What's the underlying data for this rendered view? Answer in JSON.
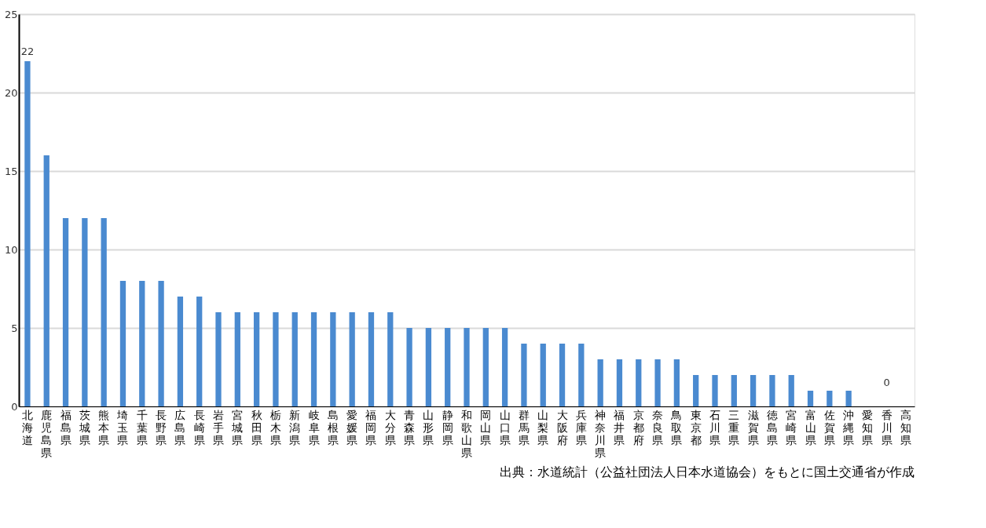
{
  "chart_data": {
    "type": "bar",
    "categories": [
      "北海道",
      "鹿児島県",
      "福島県",
      "茨城県",
      "熊本県",
      "埼玉県",
      "千葉県",
      "長野県",
      "広島県",
      "長崎県",
      "岩手県",
      "宮城県",
      "秋田県",
      "栃木県",
      "新潟県",
      "岐阜県",
      "島根県",
      "愛媛県",
      "福岡県",
      "大分県",
      "青森県",
      "山形県",
      "静岡県",
      "和歌山県",
      "岡山県",
      "山口県",
      "群馬県",
      "山梨県",
      "大阪府",
      "兵庫県",
      "神奈川県",
      "福井県",
      "京都府",
      "奈良県",
      "鳥取県",
      "東京都",
      "石川県",
      "三重県",
      "滋賀県",
      "徳島県",
      "宮崎県",
      "富山県",
      "佐賀県",
      "沖縄県",
      "愛知県",
      "香川県",
      "高知県"
    ],
    "values": [
      22,
      16,
      12,
      12,
      12,
      8,
      8,
      8,
      7,
      7,
      6,
      6,
      6,
      6,
      6,
      6,
      6,
      6,
      6,
      6,
      5,
      5,
      5,
      5,
      5,
      5,
      4,
      4,
      4,
      4,
      3,
      3,
      3,
      3,
      3,
      2,
      2,
      2,
      2,
      2,
      2,
      1,
      1,
      1,
      0,
      0,
      0
    ],
    "color": "#4a8ad0",
    "value_labels": [
      "22",
      null,
      null,
      null,
      null,
      null,
      null,
      null,
      null,
      null,
      null,
      null,
      null,
      null,
      null,
      null,
      null,
      null,
      null,
      null,
      null,
      null,
      null,
      null,
      null,
      null,
      null,
      null,
      null,
      null,
      null,
      null,
      null,
      null,
      null,
      null,
      null,
      null,
      null,
      null,
      null,
      null,
      null,
      null,
      null,
      null,
      null
    ],
    "annotations": [
      {
        "text": "0",
        "x": "香川県",
        "y": 0
      },
      "出典：水道統計（公益社団法人日本水道協会）をもとに国土交通省が作成"
    ],
    "ylim": [
      0,
      25
    ],
    "yticks": [
      0,
      5,
      10,
      15,
      20,
      25
    ],
    "grid": "y"
  }
}
